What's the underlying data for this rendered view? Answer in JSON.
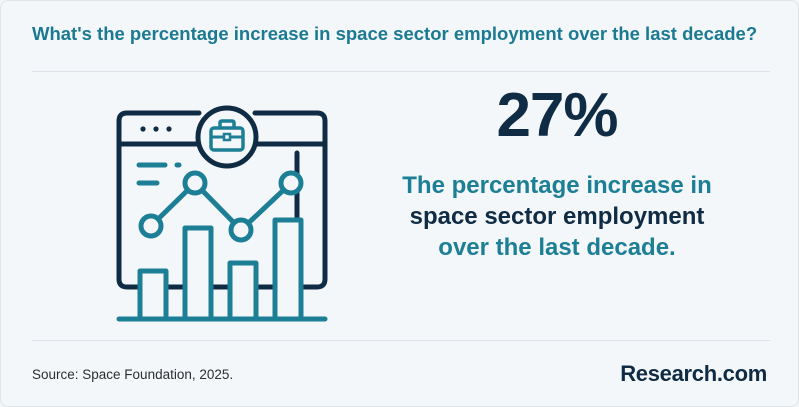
{
  "question": "What's the percentage increase in space sector employment over the last decade?",
  "stat": {
    "value": "27%"
  },
  "description": {
    "line1": "The percentage increase in",
    "line2": "space sector employment",
    "line3": "over the last decade."
  },
  "footer": {
    "source": "Source: Space Foundation, 2025.",
    "brand": "Research.com"
  },
  "colors": {
    "accent": "#1c7f95",
    "dark": "#0f2c44",
    "background": "#f4f7f9"
  },
  "illustration": {
    "icons": [
      "browser-window-icon",
      "briefcase-icon",
      "bar-chart-icon",
      "line-chart-icon"
    ]
  }
}
